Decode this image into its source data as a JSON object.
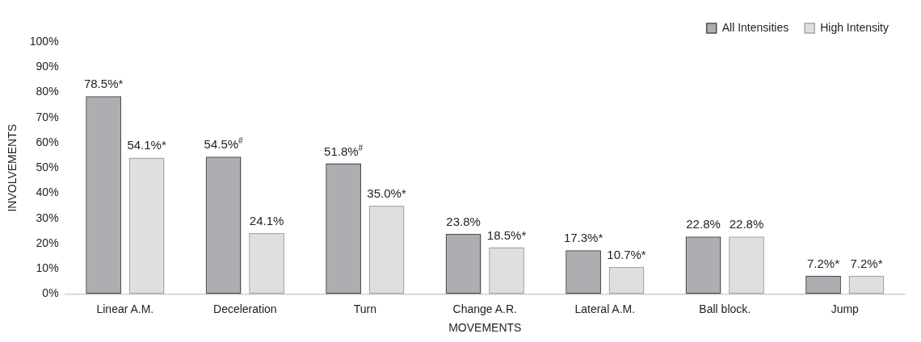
{
  "chart_data": {
    "type": "bar",
    "xlabel": "MOVEMENTS",
    "ylabel": "INVOLVEMENTS",
    "categories": [
      "Linear A.M.",
      "Deceleration",
      "Turn",
      "Change A.R.",
      "Lateral A.M.",
      "Ball block.",
      "Jump"
    ],
    "series": [
      {
        "name": "All Intensities",
        "color": "#aeaeb2",
        "values": [
          78.5,
          54.5,
          51.8,
          23.8,
          17.3,
          22.8,
          7.2
        ],
        "value_labels": [
          "78.5%*",
          "54.5%$^{#}$",
          "51.8%$^{#}$",
          "23.8%",
          "17.3%*",
          "22.8%",
          "7.2%*"
        ]
      },
      {
        "name": "High Intensity",
        "color": "#dfdfe0",
        "values": [
          54.1,
          24.1,
          35.0,
          18.5,
          10.7,
          22.8,
          7.2
        ],
        "value_labels": [
          "54.1%*",
          "24.1%",
          "35.0%*",
          "18.5%*",
          "10.7%*",
          "22.8%",
          "7.2%*"
        ]
      }
    ],
    "ylim": [
      0,
      100
    ],
    "yticks": [
      {
        "value": 0,
        "label": "0%"
      },
      {
        "value": 10,
        "label": "10%"
      },
      {
        "value": 20,
        "label": "20%"
      },
      {
        "value": 30,
        "label": "30%"
      },
      {
        "value": 40,
        "label": "40%"
      },
      {
        "value": 50,
        "label": "50%"
      },
      {
        "value": 60,
        "label": "60%"
      },
      {
        "value": 70,
        "label": "70%"
      },
      {
        "value": 80,
        "label": "80%"
      },
      {
        "value": 90,
        "label": "90%"
      },
      {
        "value": 100,
        "label": "100%"
      }
    ],
    "grid": false,
    "legend": "top right"
  }
}
